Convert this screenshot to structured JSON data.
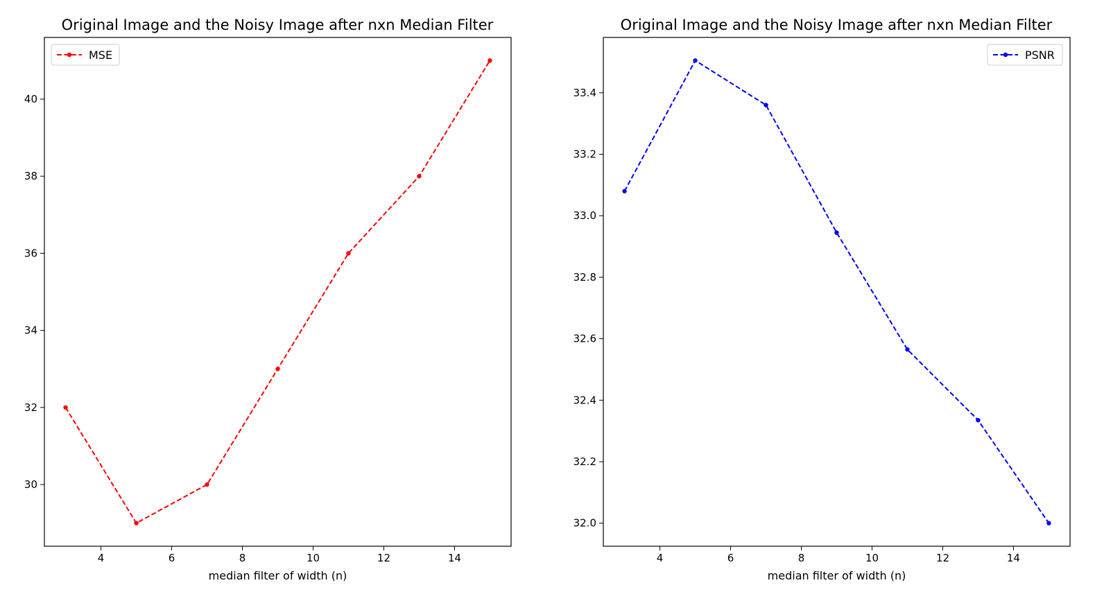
{
  "chart_data": [
    {
      "type": "line",
      "title": "Original Image and the Noisy Image after nxn Median Filter",
      "xlabel": "median filter of width (n)",
      "ylabel": "",
      "x": [
        3,
        5,
        7,
        9,
        11,
        13,
        15
      ],
      "series": [
        {
          "name": "MSE",
          "values": [
            32,
            29,
            30,
            33,
            36,
            38,
            41
          ],
          "color": "#ff0000",
          "line_style": "dashed",
          "marker": "dot"
        }
      ],
      "xlim": [
        2.4,
        15.6
      ],
      "ylim": [
        28.4,
        41.6
      ],
      "xticks": [
        4,
        6,
        8,
        10,
        12,
        14
      ],
      "yticks": [
        30,
        32,
        34,
        36,
        38,
        40
      ],
      "legend": "top-left",
      "grid": false
    },
    {
      "type": "line",
      "title": "Original Image and the Noisy Image after nxn Median Filter",
      "xlabel": "median filter of width (n)",
      "ylabel": "",
      "x": [
        3,
        5,
        7,
        9,
        11,
        13,
        15
      ],
      "series": [
        {
          "name": "PSNR",
          "values": [
            33.08,
            33.505,
            33.36,
            32.945,
            32.565,
            32.335,
            32.0
          ],
          "color": "#0000ff",
          "line_style": "dashed",
          "marker": "dot"
        }
      ],
      "xlim": [
        2.4,
        15.6
      ],
      "ylim": [
        31.925,
        33.58
      ],
      "xticks": [
        4,
        6,
        8,
        10,
        12,
        14
      ],
      "yticks": [
        "32.0",
        "32.2",
        "32.4",
        "32.6",
        "32.8",
        "33.0",
        "33.2",
        "33.4"
      ],
      "legend": "top-right",
      "grid": false
    }
  ]
}
